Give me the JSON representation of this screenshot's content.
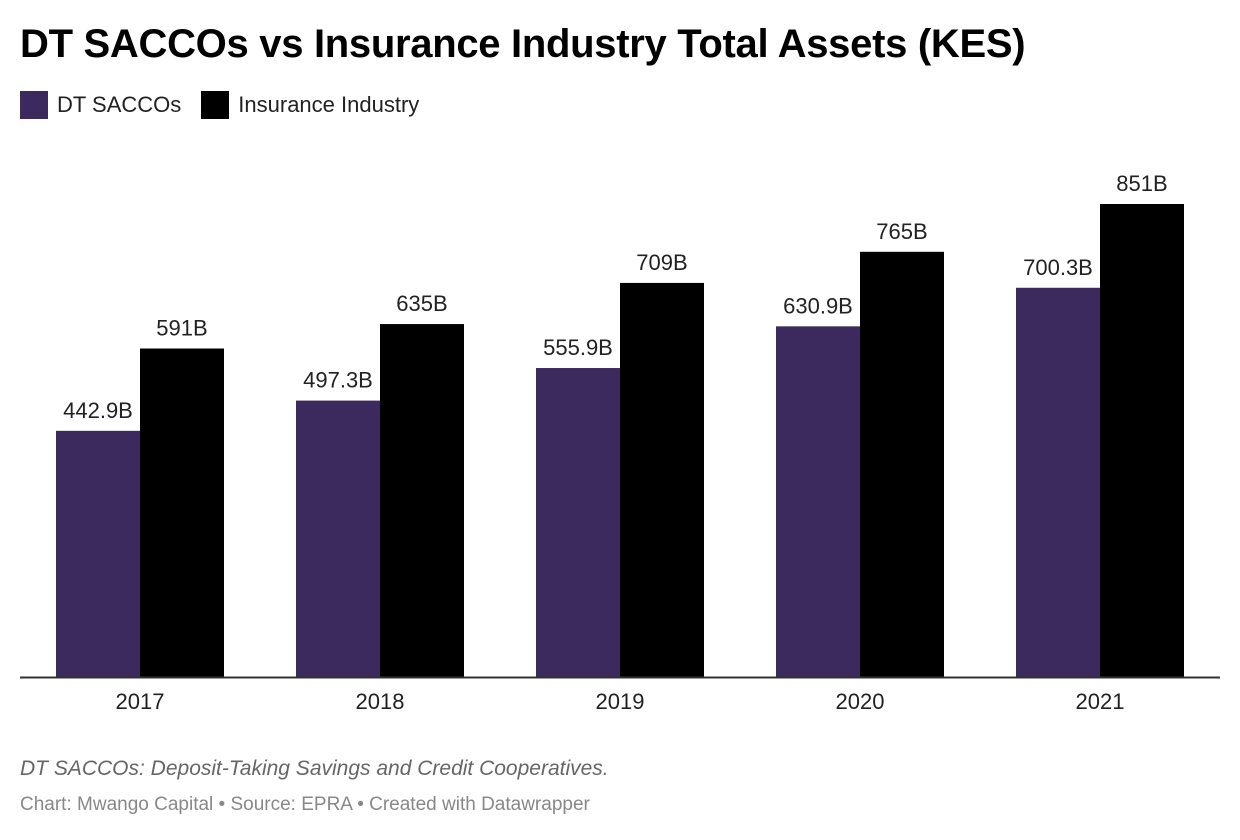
{
  "chart_data": {
    "type": "bar",
    "title": "DT SACCOs vs Insurance Industry Total Assets (KES)",
    "categories": [
      "2017",
      "2018",
      "2019",
      "2020",
      "2021"
    ],
    "series": [
      {
        "name": "DT SACCOs",
        "color": "#3c2a5e",
        "values": [
          442.9,
          497.3,
          555.9,
          630.9,
          700.3
        ],
        "labels": [
          "442.9B",
          "497.3B",
          "555.9B",
          "630.9B",
          "700.3B"
        ]
      },
      {
        "name": "Insurance Industry",
        "color": "#000000",
        "values": [
          591,
          635,
          709,
          765,
          851
        ],
        "labels": [
          "591B",
          "635B",
          "709B",
          "765B",
          "851B"
        ]
      }
    ],
    "xlabel": "",
    "ylabel": "",
    "ylim": [
      0,
      851
    ],
    "grid": false,
    "legend_position": "top-left"
  },
  "notes": "DT SACCOs: Deposit-Taking Savings and Credit Cooperatives.",
  "credit": "Chart: Mwango Capital • Source: EPRA • Created with Datawrapper"
}
